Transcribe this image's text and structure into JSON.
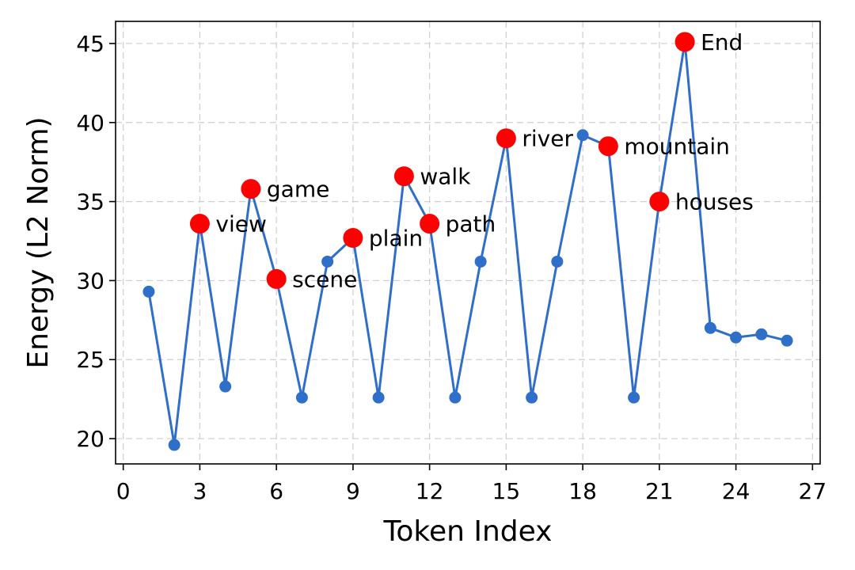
{
  "chart_data": {
    "type": "line",
    "xlabel": "Token Index",
    "ylabel": "Energy (L2 Norm)",
    "xlim": [
      -0.3,
      27.3
    ],
    "ylim": [
      18.4,
      46.4
    ],
    "xticks": [
      0,
      3,
      6,
      9,
      12,
      15,
      18,
      21,
      24,
      27
    ],
    "yticks": [
      20,
      25,
      30,
      35,
      40,
      45
    ],
    "grid": true,
    "line_color": "#2f6fc9",
    "highlight_color": "#ff0000",
    "series": [
      {
        "x": [
          1,
          2,
          3,
          4,
          5,
          6,
          7,
          8,
          9,
          10,
          11,
          12,
          13,
          14,
          15,
          16,
          17,
          18,
          19,
          20,
          21,
          22,
          23,
          24,
          25,
          26
        ],
        "y": [
          29.3,
          19.6,
          33.6,
          23.3,
          35.8,
          30.1,
          22.6,
          31.2,
          32.7,
          22.6,
          36.6,
          33.6,
          22.6,
          31.2,
          39.0,
          22.6,
          31.2,
          39.2,
          38.5,
          22.6,
          35.0,
          45.1,
          27.0,
          26.4,
          26.6,
          26.2
        ]
      }
    ],
    "annotations": [
      {
        "x": 3,
        "y": 33.6,
        "label": "view"
      },
      {
        "x": 5,
        "y": 35.8,
        "label": "game"
      },
      {
        "x": 6,
        "y": 30.1,
        "label": "scene"
      },
      {
        "x": 9,
        "y": 32.7,
        "label": "plain"
      },
      {
        "x": 11,
        "y": 36.6,
        "label": "walk"
      },
      {
        "x": 12,
        "y": 33.6,
        "label": "path"
      },
      {
        "x": 15,
        "y": 39.0,
        "label": "river"
      },
      {
        "x": 19,
        "y": 38.5,
        "label": "mountain"
      },
      {
        "x": 21,
        "y": 35.0,
        "label": "houses"
      },
      {
        "x": 22,
        "y": 45.1,
        "label": "End"
      }
    ]
  }
}
